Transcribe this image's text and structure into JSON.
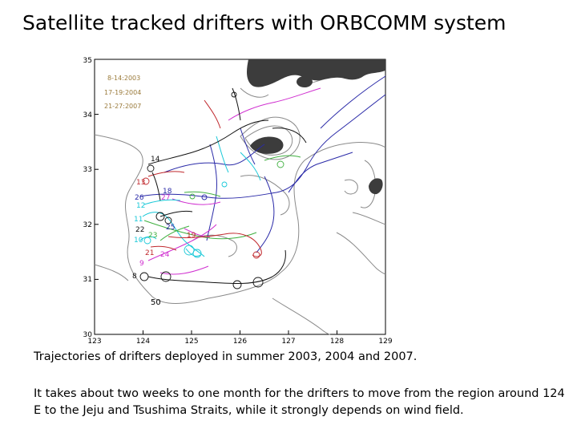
{
  "title": "Satellite tracked drifters with ORBCOMM system",
  "caption_1": "Trajectories of drifters deployed in summer 2003, 2004 and 2007.",
  "caption_2": "It takes about two weeks to one month for the drifters to move from the region around 124 E to the Jeju and Tsushima Straits, while it strongly depends on wind field.",
  "map": {
    "lon_range": [
      123,
      129
    ],
    "lat_range": [
      30,
      35
    ],
    "x_ticks": [
      "123",
      "124",
      "125",
      "126",
      "127",
      "128",
      "129"
    ],
    "y_ticks": [
      "30",
      "31",
      "32",
      "33",
      "34",
      "35"
    ],
    "legend": [
      "8-14:2003",
      "17-19:2004",
      "21-27:2007"
    ],
    "isobath_label": "50",
    "drifter_labels": [
      "14",
      "13",
      "18",
      "26",
      "27",
      "12",
      "11",
      "22",
      "23",
      "25",
      "10",
      "19",
      "21",
      "24",
      "9",
      "8"
    ],
    "colors": {
      "red": "#c0282d",
      "blue": "#2a2aa8",
      "magenta": "#d030d0",
      "cyan": "#18c8d8",
      "green": "#40b040",
      "black": "#111111",
      "land": "#3c3c3c",
      "contour": "#8a8a8a",
      "legend": "#9a7a3a"
    }
  }
}
